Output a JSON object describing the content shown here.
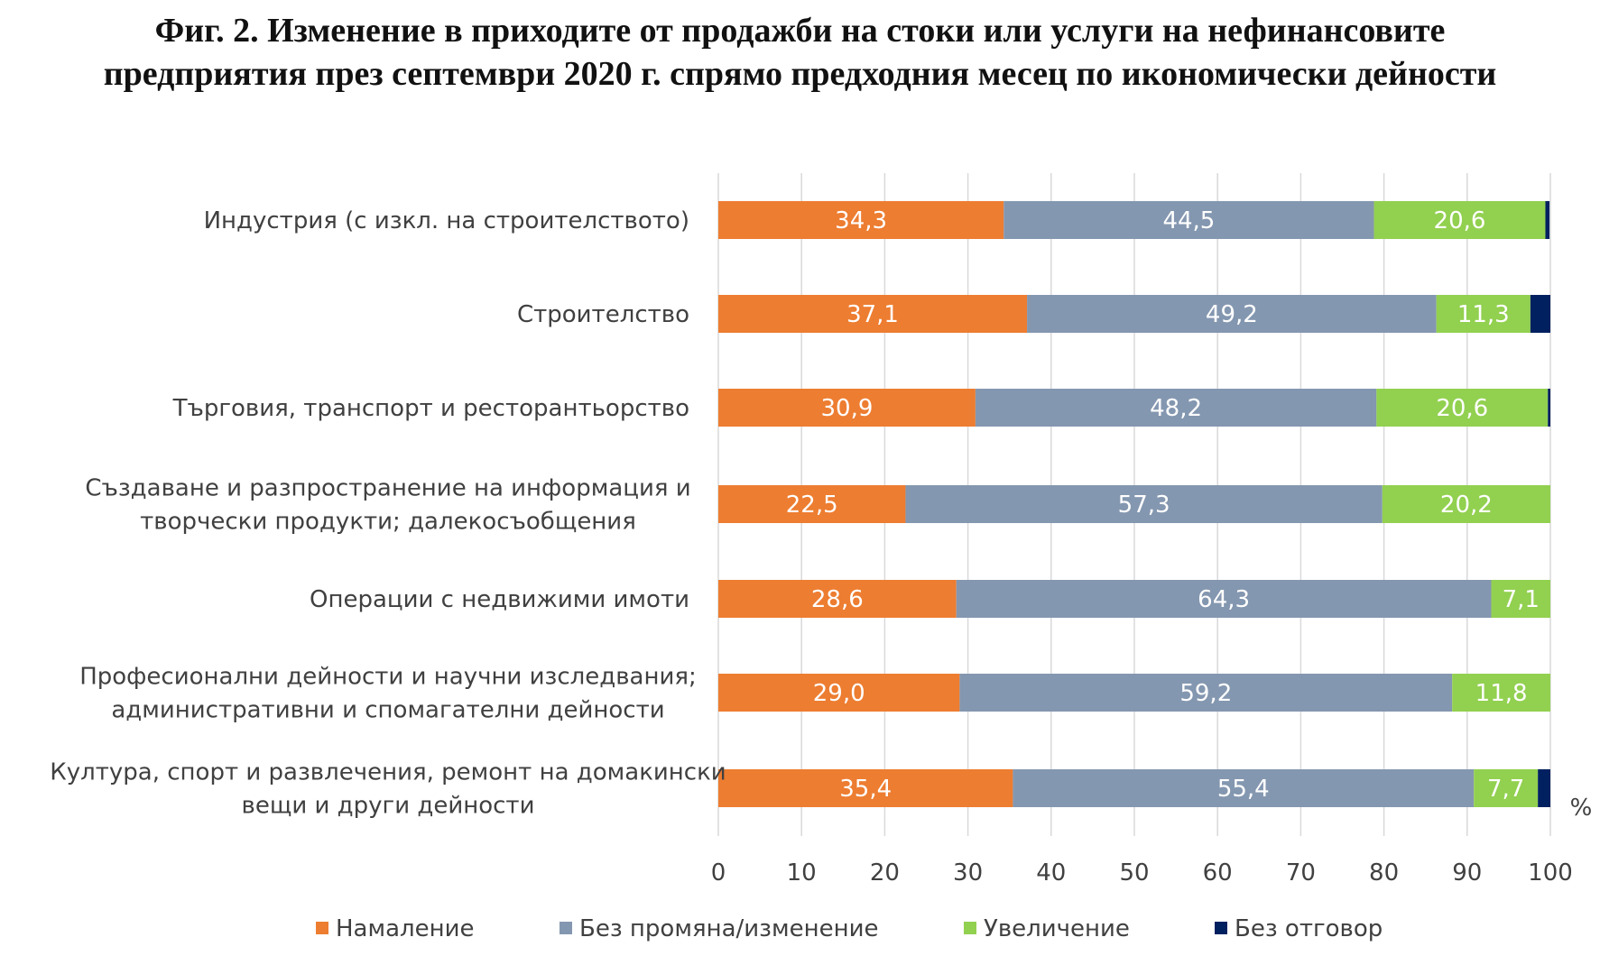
{
  "chart_data": {
    "type": "bar",
    "orientation": "horizontal",
    "stacked": true,
    "title_lines": [
      "Фиг. 2. Изменение в приходите от продажби на стоки или услуги  на нефинансовите",
      "предприятия през септември 2020 г. спрямо предходния месец по икономически дейности"
    ],
    "categories": [
      [
        "Индустрия (с изкл. на строителството)"
      ],
      [
        "Строителство"
      ],
      [
        "Търговия, транспорт и ресторантьорство"
      ],
      [
        "Създаване и разпространение на информация и",
        "творчески продукти; далекосъобщения"
      ],
      [
        "Операции с недвижими имоти"
      ],
      [
        "Професионални дейности и научни изследвания;",
        "административни и спомагателни дейности"
      ],
      [
        "Култура, спорт и развлечения, ремонт на домакински",
        "вещи и други дейности"
      ]
    ],
    "series": [
      {
        "name": "Намаление",
        "color": "#ED7D31",
        "values": [
          34.3,
          37.1,
          30.9,
          22.5,
          28.6,
          29.0,
          35.4
        ],
        "labels": [
          "34,3",
          "37,1",
          "30,9",
          "22,5",
          "28,6",
          "29,0",
          "35,4"
        ]
      },
      {
        "name": "Без промяна/изменение",
        "color": "#8497B0",
        "values": [
          44.5,
          49.2,
          48.2,
          57.3,
          64.3,
          59.2,
          55.4
        ],
        "labels": [
          "44,5",
          "49,2",
          "48,2",
          "57,3",
          "64,3",
          "59,2",
          "55,4"
        ]
      },
      {
        "name": "Увеличение",
        "color": "#92D050",
        "values": [
          20.6,
          11.3,
          20.6,
          20.2,
          7.1,
          11.8,
          7.7
        ],
        "labels": [
          "20,6",
          "11,3",
          "20,6",
          "20,2",
          "7,1",
          "11,8",
          "7,7"
        ]
      },
      {
        "name": "Без отговор",
        "color": "#002060",
        "values": [
          0.5,
          2.4,
          0.3,
          0.0,
          0.0,
          0.0,
          1.5
        ],
        "labels": [
          "",
          "",
          "",
          "",
          "",
          "",
          ""
        ]
      }
    ],
    "xlim": [
      0,
      100
    ],
    "xticks": [
      "0",
      "10",
      "20",
      "30",
      "40",
      "50",
      "60",
      "70",
      "80",
      "90",
      "100"
    ],
    "x_unit": "%",
    "grid": "vertical",
    "gridline_color": "#D9D9D9",
    "legend": "bottom"
  }
}
